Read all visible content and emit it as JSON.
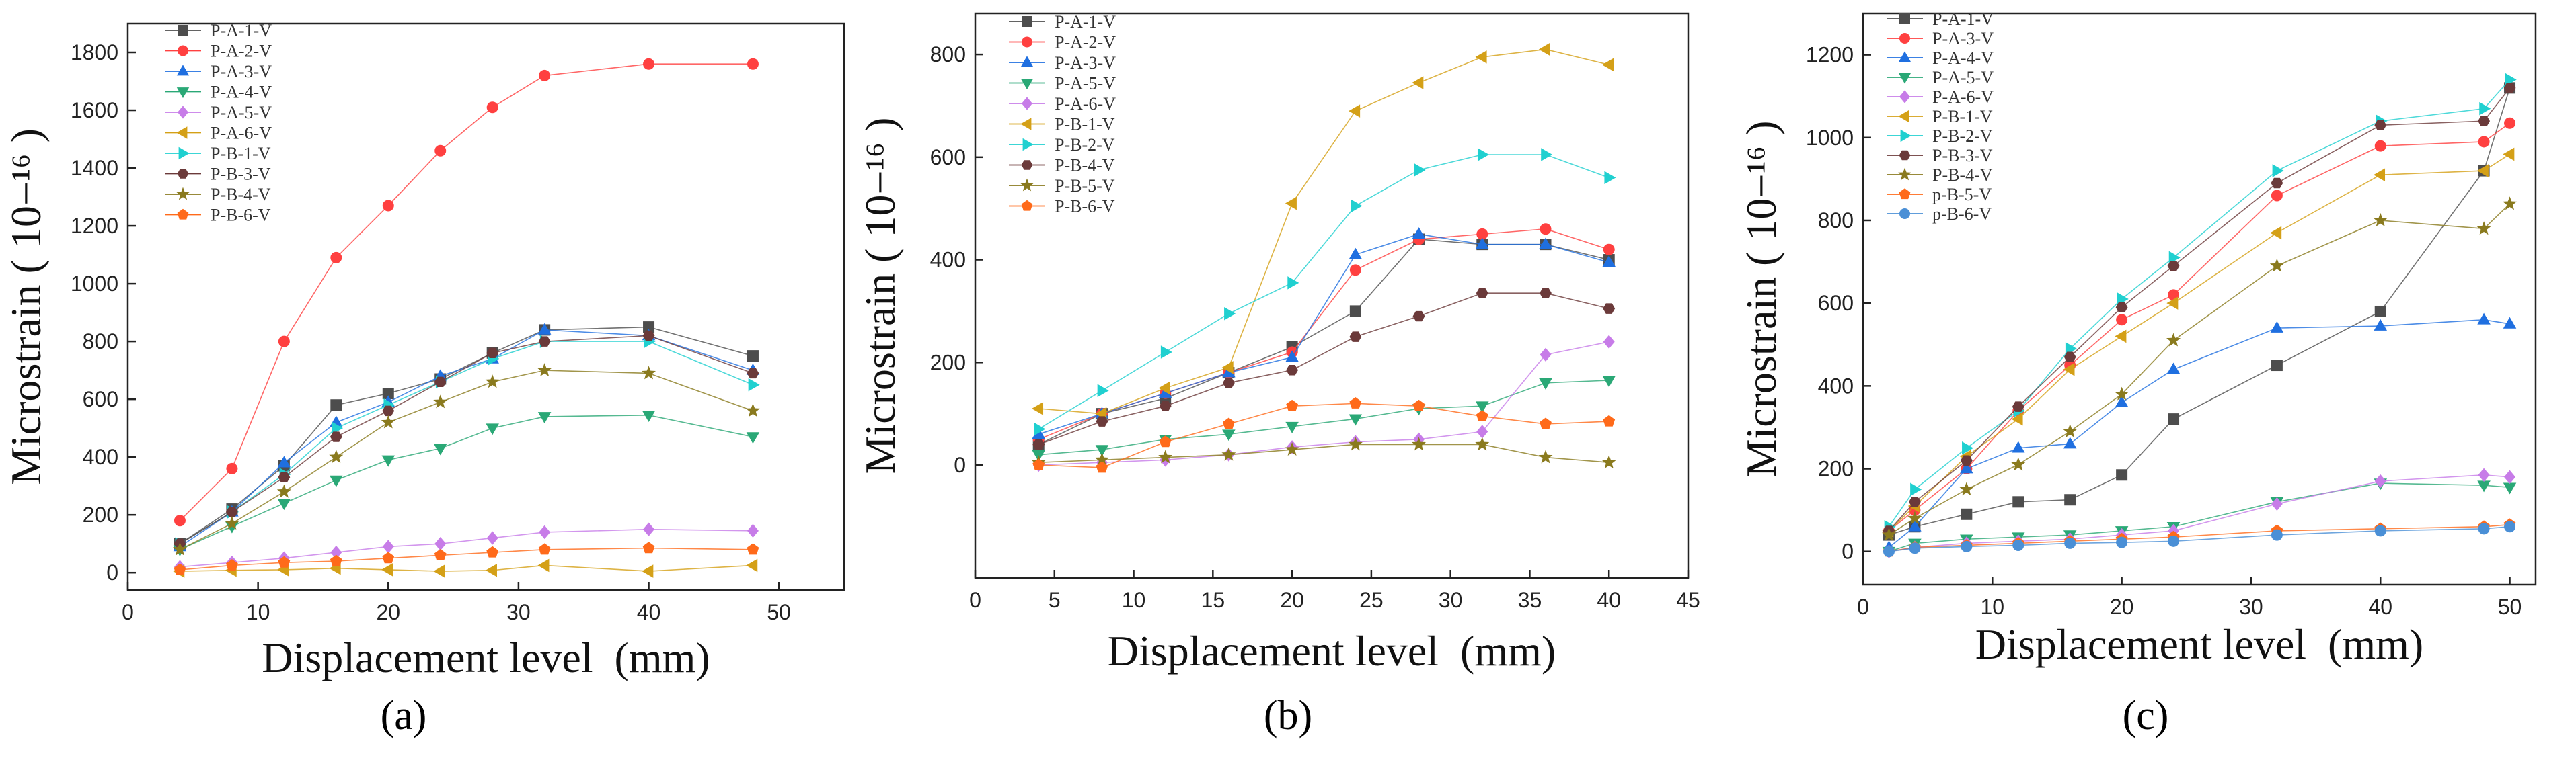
{
  "panel_labels": [
    "(a)",
    "(b)",
    "(c)"
  ],
  "chart_data": [
    {
      "type": "line",
      "panel": "a",
      "xlabel": "Displacement level  (mm)",
      "ylabel": "Microstrain ( 10−¹⁶ )",
      "xlim": [
        0,
        55
      ],
      "ylim": [
        -60,
        1900
      ],
      "xticks": [
        0,
        10,
        20,
        30,
        40,
        50
      ],
      "yticks": [
        0,
        200,
        400,
        600,
        800,
        1000,
        1200,
        1400,
        1600,
        1800
      ],
      "x": [
        4,
        8,
        12,
        16,
        20,
        24,
        28,
        32,
        40,
        48
      ],
      "legend_position": "top-left",
      "series": [
        {
          "name": "P-A-1-V",
          "color": "#4d4d4d",
          "marker": "square",
          "values": [
            100,
            220,
            370,
            580,
            620,
            670,
            760,
            840,
            850,
            750
          ]
        },
        {
          "name": "P-A-2-V",
          "color": "#ff4040",
          "marker": "circle",
          "values": [
            180,
            360,
            800,
            1090,
            1270,
            1460,
            1610,
            1720,
            1760,
            1760
          ]
        },
        {
          "name": "P-A-3-V",
          "color": "#1f6fe0",
          "marker": "triangle-up",
          "values": [
            90,
            210,
            380,
            520,
            590,
            680,
            740,
            840,
            820,
            700
          ]
        },
        {
          "name": "P-A-4-V",
          "color": "#2aa876",
          "marker": "triangle-down",
          "values": [
            80,
            160,
            240,
            320,
            390,
            430,
            500,
            540,
            545,
            470
          ]
        },
        {
          "name": "P-A-5-V",
          "color": "#c77ce8",
          "marker": "diamond",
          "values": [
            20,
            35,
            50,
            70,
            90,
            100,
            120,
            140,
            150,
            145
          ]
        },
        {
          "name": "P-A-6-V",
          "color": "#d4a017",
          "marker": "triangle-left",
          "values": [
            5,
            8,
            10,
            15,
            10,
            5,
            8,
            25,
            5,
            25
          ]
        },
        {
          "name": "P-B-1-V",
          "color": "#20d0d0",
          "marker": "triangle-right",
          "values": [
            100,
            210,
            340,
            500,
            580,
            660,
            740,
            800,
            800,
            650
          ]
        },
        {
          "name": "P-B-3-V",
          "color": "#6b3a3a",
          "marker": "hexagon",
          "values": [
            100,
            210,
            330,
            470,
            560,
            660,
            760,
            800,
            820,
            690
          ]
        },
        {
          "name": "P-B-4-V",
          "color": "#8a7a1e",
          "marker": "star",
          "values": [
            80,
            170,
            280,
            400,
            520,
            590,
            660,
            700,
            690,
            560
          ]
        },
        {
          "name": "P-B-6-V",
          "color": "#ff6a1a",
          "marker": "pentagon",
          "values": [
            10,
            25,
            35,
            40,
            50,
            60,
            70,
            80,
            85,
            80
          ]
        }
      ]
    },
    {
      "type": "line",
      "panel": "b",
      "xlabel": "Displacement level  (mm)",
      "ylabel": "Microstrain ( 10−¹⁶ )",
      "xlim": [
        0,
        45
      ],
      "ylim": [
        -220,
        880
      ],
      "xticks": [
        0,
        5,
        10,
        15,
        20,
        25,
        30,
        35,
        40,
        45
      ],
      "yticks": [
        0,
        200,
        400,
        600,
        800
      ],
      "x": [
        4,
        8,
        12,
        16,
        20,
        24,
        28,
        32,
        36,
        40
      ],
      "legend_position": "top-left",
      "series": [
        {
          "name": "P-A-1-V",
          "color": "#4d4d4d",
          "marker": "square",
          "values": [
            40,
            100,
            130,
            180,
            230,
            300,
            440,
            430,
            430,
            400
          ]
        },
        {
          "name": "P-A-2-V",
          "color": "#ff4040",
          "marker": "circle",
          "values": [
            50,
            100,
            140,
            180,
            220,
            380,
            440,
            450,
            460,
            420
          ]
        },
        {
          "name": "P-A-3-V",
          "color": "#1f6fe0",
          "marker": "triangle-up",
          "values": [
            60,
            100,
            140,
            180,
            210,
            410,
            450,
            430,
            430,
            395
          ]
        },
        {
          "name": "P-A-5-V",
          "color": "#2aa876",
          "marker": "triangle-down",
          "values": [
            20,
            30,
            50,
            60,
            75,
            90,
            110,
            115,
            160,
            165
          ]
        },
        {
          "name": "P-A-6-V",
          "color": "#c77ce8",
          "marker": "diamond",
          "values": [
            0,
            5,
            10,
            20,
            35,
            45,
            50,
            65,
            215,
            240
          ]
        },
        {
          "name": "P-B-1-V",
          "color": "#d4a017",
          "marker": "triangle-left",
          "values": [
            110,
            100,
            150,
            190,
            510,
            690,
            745,
            795,
            810,
            780
          ]
        },
        {
          "name": "P-B-2-V",
          "color": "#20d0d0",
          "marker": "triangle-right",
          "values": [
            70,
            145,
            220,
            295,
            355,
            505,
            575,
            605,
            605,
            560
          ]
        },
        {
          "name": "P-B-4-V",
          "color": "#6b3a3a",
          "marker": "hexagon",
          "values": [
            40,
            85,
            115,
            160,
            185,
            250,
            290,
            335,
            335,
            305
          ]
        },
        {
          "name": "P-B-5-V",
          "color": "#8a7a1e",
          "marker": "star",
          "values": [
            5,
            10,
            15,
            20,
            30,
            40,
            40,
            40,
            15,
            5
          ]
        },
        {
          "name": "P-B-6-V",
          "color": "#ff6a1a",
          "marker": "pentagon",
          "values": [
            0,
            -5,
            45,
            80,
            115,
            120,
            115,
            95,
            80,
            85
          ]
        }
      ]
    },
    {
      "type": "line",
      "panel": "c",
      "xlabel": "Displacement level  (mm)",
      "ylabel": "Microstrain ( 10−¹⁶ )",
      "xlim": [
        0,
        52
      ],
      "ylim": [
        -80,
        1300
      ],
      "xticks": [
        0,
        10,
        20,
        30,
        40,
        50
      ],
      "yticks": [
        0,
        200,
        400,
        600,
        800,
        1000,
        1200
      ],
      "x": [
        2,
        4,
        8,
        12,
        16,
        20,
        24,
        32,
        40,
        48,
        50
      ],
      "legend_position": "top-left",
      "series": [
        {
          "name": "P-A-1-V",
          "color": "#4d4d4d",
          "marker": "square",
          "values": [
            40,
            60,
            90,
            120,
            125,
            185,
            320,
            450,
            580,
            920,
            1120
          ]
        },
        {
          "name": "P-A-3-V",
          "color": "#ff4040",
          "marker": "circle",
          "values": [
            50,
            100,
            200,
            340,
            450,
            560,
            620,
            860,
            980,
            990,
            1035
          ]
        },
        {
          "name": "P-A-4-V",
          "color": "#1f6fe0",
          "marker": "triangle-up",
          "values": [
            10,
            60,
            200,
            250,
            260,
            360,
            440,
            540,
            545,
            560,
            550
          ]
        },
        {
          "name": "P-A-5-V",
          "color": "#2aa876",
          "marker": "triangle-down",
          "values": [
            0,
            20,
            30,
            35,
            40,
            50,
            60,
            120,
            165,
            160,
            155
          ]
        },
        {
          "name": "P-A-6-V",
          "color": "#c77ce8",
          "marker": "diamond",
          "values": [
            0,
            10,
            20,
            25,
            30,
            40,
            50,
            115,
            170,
            185,
            180
          ]
        },
        {
          "name": "P-B-1-V",
          "color": "#d4a017",
          "marker": "triangle-left",
          "values": [
            50,
            110,
            230,
            320,
            440,
            520,
            600,
            770,
            910,
            920,
            960
          ]
        },
        {
          "name": "P-B-2-V",
          "color": "#20d0d0",
          "marker": "triangle-right",
          "values": [
            60,
            150,
            250,
            340,
            490,
            610,
            710,
            920,
            1040,
            1070,
            1140
          ]
        },
        {
          "name": "P-B-3-V",
          "color": "#6b3a3a",
          "marker": "hexagon",
          "values": [
            50,
            120,
            220,
            350,
            470,
            590,
            690,
            890,
            1030,
            1040,
            1120
          ]
        },
        {
          "name": "P-B-4-V",
          "color": "#8a7a1e",
          "marker": "star",
          "values": [
            40,
            80,
            150,
            210,
            290,
            380,
            510,
            690,
            800,
            780,
            840
          ]
        },
        {
          "name": "p-B-5-V",
          "color": "#ff6a1a",
          "marker": "pentagon",
          "values": [
            0,
            10,
            15,
            20,
            25,
            30,
            35,
            50,
            55,
            60,
            65
          ]
        },
        {
          "name": "p-B-6-V",
          "color": "#4a8fd6",
          "marker": "circle",
          "values": [
            0,
            8,
            12,
            15,
            20,
            22,
            25,
            40,
            50,
            55,
            60
          ]
        }
      ]
    }
  ]
}
